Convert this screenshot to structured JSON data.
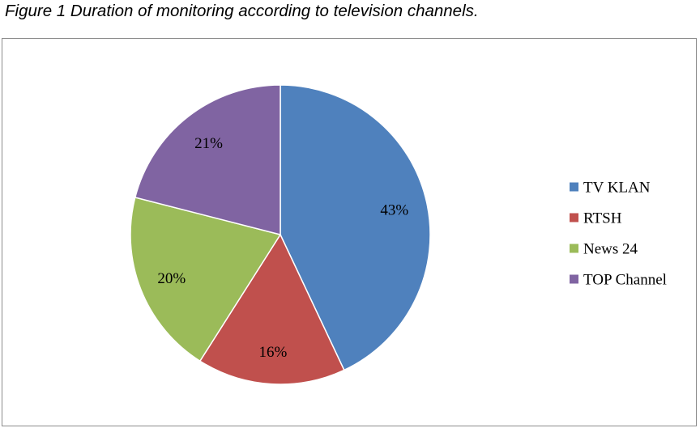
{
  "caption": "Figure 1 Duration of monitoring according to television channels.",
  "chart_data": {
    "type": "pie",
    "title": "",
    "legend_position": "right",
    "slices": [
      {
        "name": "TV KLAN",
        "value": 43,
        "label": "43%",
        "color": "#4f81bd"
      },
      {
        "name": "RTSH",
        "value": 16,
        "label": "16%",
        "color": "#c0504d"
      },
      {
        "name": "News 24",
        "value": 20,
        "label": "20%",
        "color": "#9bbb59"
      },
      {
        "name": "TOP Channel",
        "value": 21,
        "label": "21%",
        "color": "#8064a2"
      }
    ]
  }
}
